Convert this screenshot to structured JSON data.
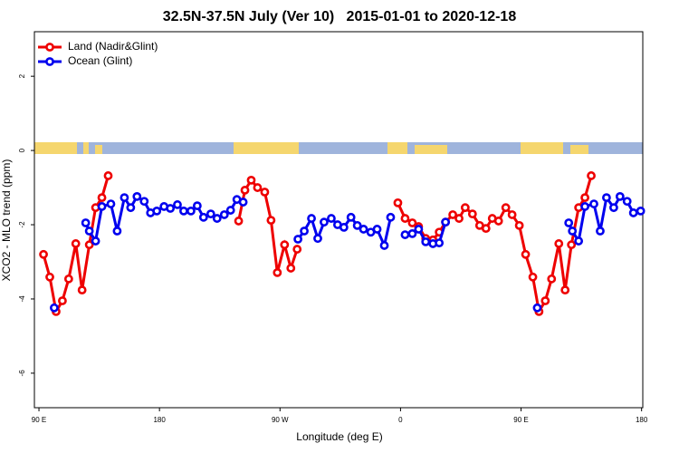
{
  "chart_data": {
    "type": "line",
    "title": "32.5N-37.5N July (Ver 10)   2015-01-01 to 2020-12-18",
    "xlabel": "Longitude (deg E)",
    "ylabel": "XCO2 - MLO trend (ppm)",
    "xlim": [
      86.6,
      540.9
    ],
    "ylim": [
      -6.93,
      3.2
    ],
    "xticks": [
      {
        "value": 90,
        "label": "90 E"
      },
      180,
      {
        "value": 270,
        "label": "90 W"
      },
      {
        "value": 360,
        "label": "0"
      },
      {
        "value": 450,
        "label": "90 E"
      },
      {
        "value": 540,
        "label": "180"
      }
    ],
    "yticks": [
      -6,
      -4,
      -2,
      0,
      2
    ],
    "legend": "top-left",
    "series": [
      {
        "name": "Land (Nadir&Glint)",
        "color": "#ee0000",
        "x": [
          93.4,
          98.1,
          102.8,
          107.5,
          112.2,
          117.5,
          122.2,
          127.6,
          132.3,
          137.0,
          141.7,
          null,
          239.1,
          243.8,
          248.5,
          253.2,
          258.6,
          263.3,
          268.0,
          273.4,
          278.1,
          282.8,
          null,
          358.0,
          363.4,
          368.8,
          373.5,
          378.8,
          384.2,
          388.9,
          393.6,
          399.0,
          403.7,
          408.3,
          413.7,
          419.1,
          423.8,
          428.5,
          433.2,
          438.6,
          443.3,
          448.7,
          453.4,
          458.8,
          463.4,
          468.1,
          472.8,
          478.2,
          482.9,
          487.6,
          493.0,
          497.7,
          502.4
        ],
        "values": [
          -2.8,
          -3.41,
          -4.34,
          -4.05,
          -3.46,
          -2.51,
          -3.76,
          -2.54,
          -1.54,
          -1.27,
          -0.68,
          null,
          -1.9,
          -1.07,
          -0.8,
          -1.0,
          -1.12,
          -1.88,
          -3.29,
          -2.54,
          -3.17,
          -2.66,
          null,
          -1.41,
          -1.83,
          -1.95,
          -2.05,
          -2.37,
          -2.41,
          -2.2,
          -1.93,
          -1.73,
          -1.83,
          -1.54,
          -1.71,
          -2.02,
          -2.1,
          -1.83,
          -1.9,
          -1.54,
          -1.73,
          -2.02,
          -2.8,
          -3.41,
          -4.34,
          -4.05,
          -3.46,
          -2.51,
          -3.76,
          -2.54,
          -1.54,
          -1.27,
          -0.68
        ]
      },
      {
        "name": "Ocean (Glint)",
        "color": "#0000ee",
        "x": [
          101.4,
          null,
          124.9,
          127.6,
          132.3,
          137.0,
          143.7,
          148.4,
          153.8,
          158.5,
          163.2,
          168.6,
          173.3,
          178.0,
          183.4,
          188.1,
          193.4,
          198.1,
          203.5,
          208.2,
          212.9,
          218.3,
          223.0,
          228.4,
          233.1,
          237.8,
          242.5,
          null,
          283.4,
          288.1,
          293.5,
          298.2,
          302.9,
          308.3,
          313.0,
          317.7,
          323.0,
          327.7,
          332.4,
          337.8,
          342.5,
          347.9,
          352.6,
          null,
          363.4,
          368.8,
          373.5,
          378.8,
          384.2,
          388.9,
          393.6,
          null,
          462.1,
          null,
          485.6,
          488.3,
          493.0,
          497.7,
          504.4,
          509.1,
          513.8,
          519.2,
          523.9,
          529.2,
          533.9,
          539.3
        ],
        "values": [
          -4.24,
          null,
          -1.95,
          -2.17,
          -2.44,
          -1.51,
          -1.44,
          -2.17,
          -1.27,
          -1.54,
          -1.24,
          -1.37,
          -1.68,
          -1.63,
          -1.51,
          -1.56,
          -1.46,
          -1.63,
          -1.63,
          -1.49,
          -1.8,
          -1.71,
          -1.83,
          -1.73,
          -1.61,
          -1.32,
          -1.39,
          null,
          -2.39,
          -2.17,
          -1.83,
          -2.37,
          -1.93,
          -1.83,
          -2.0,
          -2.07,
          -1.8,
          -2.02,
          -2.12,
          -2.2,
          -2.12,
          -2.56,
          -1.8,
          null,
          -2.27,
          -2.24,
          -2.12,
          -2.46,
          -2.51,
          -2.49,
          -1.93,
          null,
          -4.24,
          null,
          -1.95,
          -2.17,
          -2.44,
          -1.51,
          -1.44,
          -2.17,
          -1.27,
          -1.54,
          -1.24,
          -1.37,
          -1.68,
          -1.63
        ]
      }
    ]
  }
}
